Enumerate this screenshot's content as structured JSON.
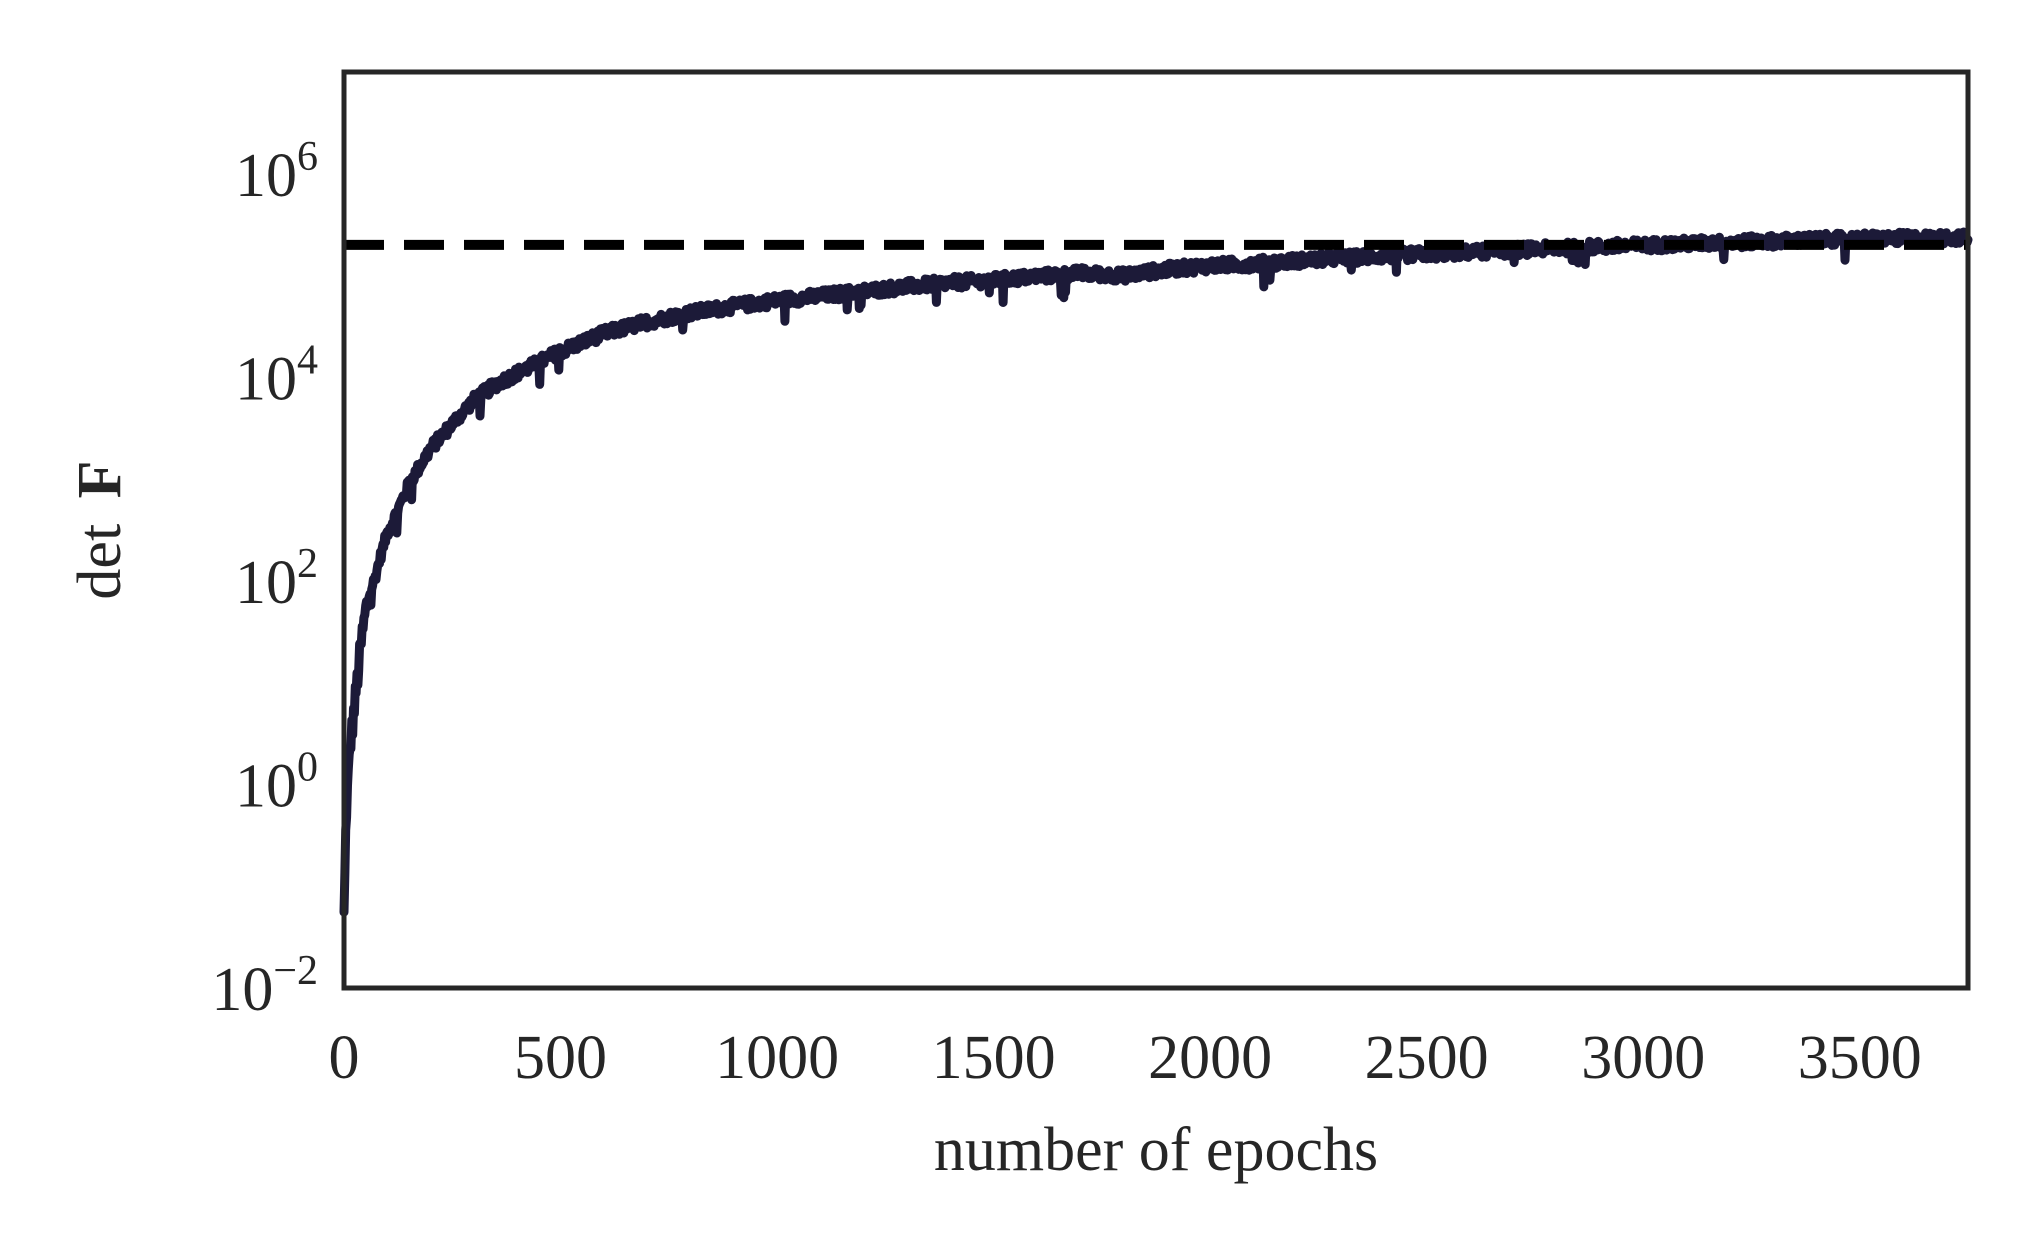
{
  "chart_data": {
    "type": "line",
    "xlabel": "number of epochs",
    "ylabel_prefix": "det",
    "ylabel_symbol": "F",
    "xlim": [
      0,
      3750
    ],
    "ylim_log10": [
      -2,
      7
    ],
    "y_scale": "log",
    "grid": false,
    "x_ticks": [
      {
        "value": 0,
        "label": "0"
      },
      {
        "value": 500,
        "label": "500"
      },
      {
        "value": 1000,
        "label": "1000"
      },
      {
        "value": 1500,
        "label": "1500"
      },
      {
        "value": 2000,
        "label": "2000"
      },
      {
        "value": 2500,
        "label": "2500"
      },
      {
        "value": 3000,
        "label": "3000"
      },
      {
        "value": 3500,
        "label": "3500"
      }
    ],
    "y_ticks": [
      {
        "exponent": -2,
        "base": "10",
        "sup": "−2"
      },
      {
        "exponent": 0,
        "base": "10",
        "sup": "0"
      },
      {
        "exponent": 2,
        "base": "10",
        "sup": "2"
      },
      {
        "exponent": 4,
        "base": "10",
        "sup": "4"
      },
      {
        "exponent": 6,
        "base": "10",
        "sup": "6"
      }
    ],
    "reference_line": {
      "value": 200000,
      "style": "dashed",
      "color": "#000000"
    },
    "series": [
      {
        "color": "#1c1a38",
        "noise_log10": 0.06,
        "x": [
          0,
          5,
          10,
          15,
          20,
          30,
          40,
          50,
          60,
          70,
          80,
          100,
          120,
          150,
          200,
          250,
          300,
          350,
          400,
          450,
          500,
          600,
          700,
          800,
          900,
          1000,
          1100,
          1200,
          1300,
          1400,
          1500,
          1600,
          1700,
          1800,
          1900,
          2000,
          2100,
          2200,
          2300,
          2400,
          2500,
          2600,
          2700,
          2800,
          2900,
          3000,
          3100,
          3200,
          3300,
          3400,
          3500,
          3600,
          3750
        ],
        "y": [
          0.05,
          0.5,
          1.2,
          2.5,
          4,
          10,
          25,
          50,
          80,
          100,
          150,
          300,
          450,
          900,
          2000,
          3500,
          6000,
          8500,
          11000,
          14000,
          18000,
          27000,
          35000,
          43000,
          50000,
          57000,
          63000,
          70000,
          78000,
          85000,
          90000,
          98000,
          105000,
          100000,
          115000,
          125000,
          130000,
          140000,
          148000,
          156000,
          163000,
          170000,
          178000,
          185000,
          192000,
          198000,
          205000,
          212000,
          218000,
          225000,
          230000,
          232000,
          235000
        ]
      }
    ]
  }
}
